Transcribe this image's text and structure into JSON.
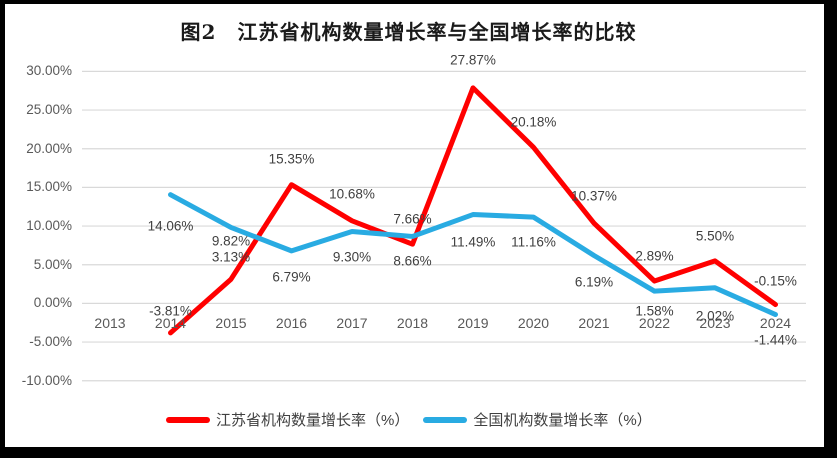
{
  "title": "图2　江苏省机构数量增长率与全国增长率的比较",
  "chart_data": {
    "type": "line",
    "title": "图2　江苏省机构数量增长率与全国增长率的比较",
    "categories": [
      "2013",
      "2014",
      "2015",
      "2016",
      "2017",
      "2018",
      "2019",
      "2020",
      "2021",
      "2022",
      "2023",
      "2024"
    ],
    "series": [
      {
        "name": "江苏省机构数量增长率（%）",
        "color": "#FF0000",
        "values": [
          null,
          -3.81,
          3.13,
          15.35,
          10.68,
          7.66,
          27.87,
          20.18,
          10.37,
          2.89,
          5.5,
          -0.15
        ],
        "labels": [
          "",
          "-3.81%",
          "3.13%",
          "15.35%",
          "10.68%",
          "7.66%",
          "27.87%",
          "20.18%",
          "10.37%",
          "2.89%",
          "5.50%",
          "-0.15%"
        ]
      },
      {
        "name": "全国机构数量增长率（%）",
        "color": "#29ABE2",
        "values": [
          null,
          14.06,
          9.82,
          6.79,
          9.3,
          8.66,
          11.49,
          11.16,
          6.19,
          1.58,
          2.02,
          -1.44
        ],
        "labels": [
          "",
          "14.06%",
          "9.82%",
          "6.79%",
          "9.30%",
          "8.66%",
          "11.49%",
          "11.16%",
          "6.19%",
          "1.58%",
          "2.02%",
          "-1.44%"
        ]
      }
    ],
    "y_ticks": [
      "30.00%",
      "25.00%",
      "20.00%",
      "15.00%",
      "10.00%",
      "5.00%",
      "0.00%",
      "-5.00%",
      "-10.00%"
    ],
    "y_tick_values": [
      30,
      25,
      20,
      15,
      10,
      5,
      0,
      -5,
      -10
    ],
    "ylim": [
      -10,
      30
    ],
    "grid": true,
    "legend_position": "bottom"
  },
  "colors": {
    "grid": "#D9D9D9",
    "axis_text": "#595959",
    "data_label_text": "#404040",
    "frame": "#000000"
  }
}
